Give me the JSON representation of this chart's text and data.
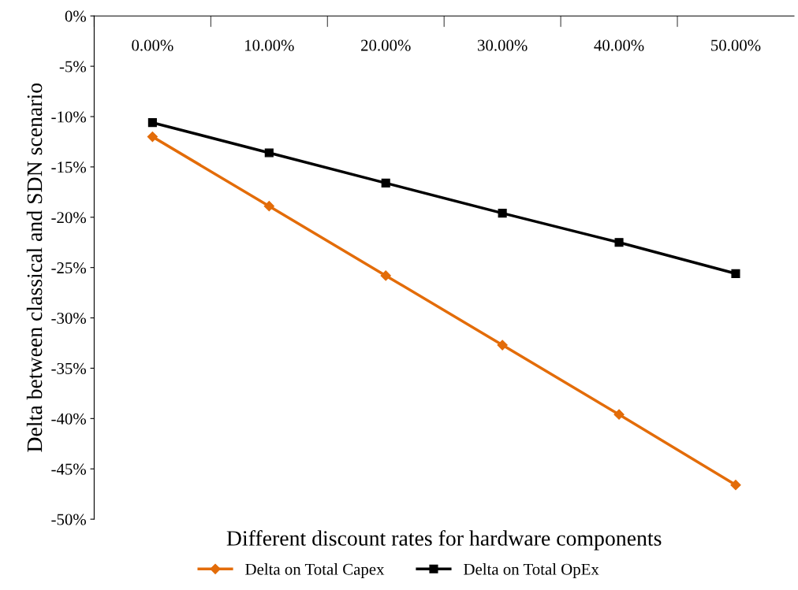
{
  "chart_data": {
    "type": "line",
    "xlabel": "Different discount rates for hardware components",
    "ylabel": "Delta between classical and SDN scenario",
    "categories": [
      "0.00%",
      "10.00%",
      "20.00%",
      "30.00%",
      "40.00%",
      "50.00%"
    ],
    "series": [
      {
        "name": "Delta on Total Capex",
        "color": "#e36c09",
        "marker": "diamond",
        "values": [
          -12.0,
          -18.9,
          -25.8,
          -32.7,
          -39.6,
          -46.6
        ]
      },
      {
        "name": "Delta on Total OpEx",
        "color": "#000000",
        "marker": "square",
        "values": [
          -10.6,
          -13.6,
          -16.6,
          -19.6,
          -22.5,
          -25.6
        ]
      }
    ],
    "ylim": [
      -50,
      0
    ],
    "yticks": [
      {
        "value": 0,
        "label": "0%"
      },
      {
        "value": -5,
        "label": "-5%"
      },
      {
        "value": -10,
        "label": "-10%"
      },
      {
        "value": -15,
        "label": "-15%"
      },
      {
        "value": -20,
        "label": "-20%"
      },
      {
        "value": -25,
        "label": "-25%"
      },
      {
        "value": -30,
        "label": "-30%"
      },
      {
        "value": -35,
        "label": "-35%"
      },
      {
        "value": -40,
        "label": "-40%"
      },
      {
        "value": -45,
        "label": "-45%"
      },
      {
        "value": -50,
        "label": "-50%"
      }
    ],
    "grid": false,
    "legend": "bottom",
    "line_style": "solid"
  }
}
